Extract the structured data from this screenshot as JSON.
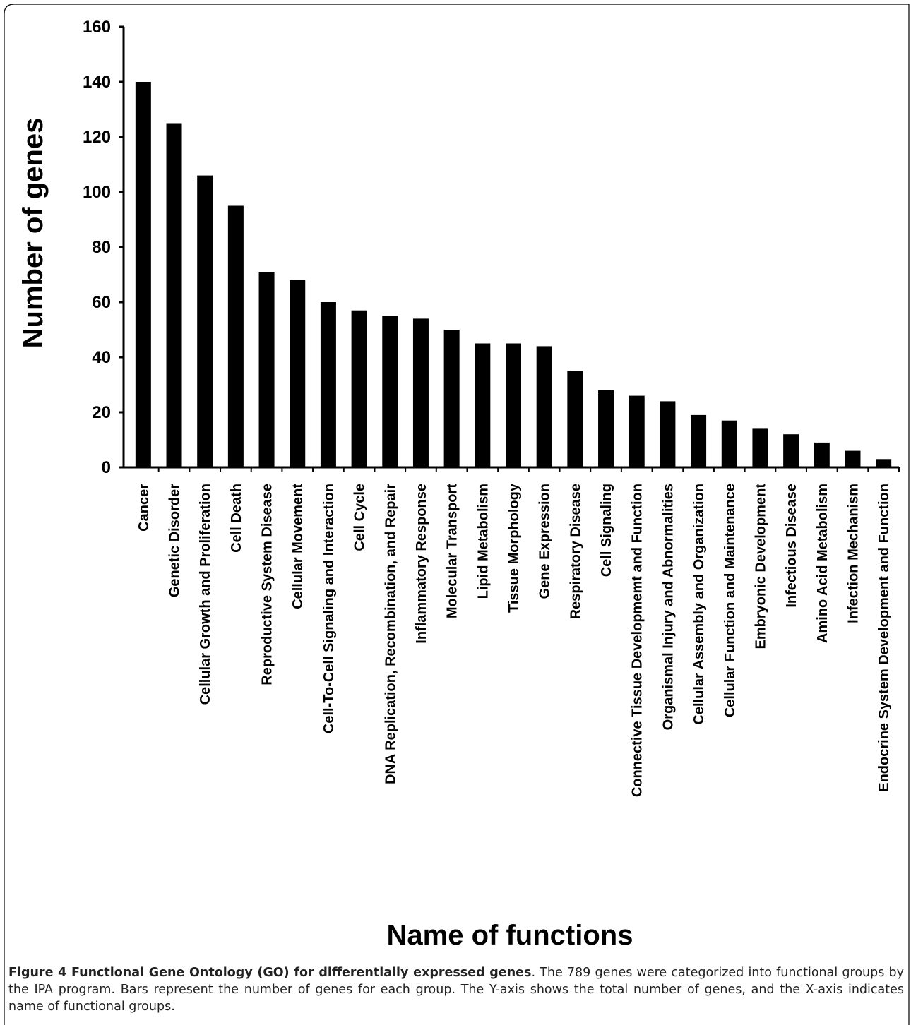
{
  "chart_data": {
    "type": "bar",
    "categories": [
      "Cancer",
      "Genetic Disorder",
      "Cellular Growth and Proliferation",
      "Cell Death",
      "Reproductive System Disease",
      "Cellular Movement",
      "Cell-To-Cell Signaling and Interaction",
      "Cell Cycle",
      "DNA Replication, Recombination, and Repair",
      "Inflammatory Response",
      "Molecular Transport",
      "Lipid Metabolism",
      "Tissue Morphology",
      "Gene Expression",
      "Respiratory Disease",
      "Cell Signaling",
      "Connective Tissue Developmemt and Function",
      "Organismal Injury and Abnormalities",
      "Cellular Assembly and Organization",
      "Cellular Function and Maintenance",
      "Embryonic Development",
      "Infectious Disease",
      "Amino Acid Metabolism",
      "Infection Mechanism",
      "Endocrine System Development and Function"
    ],
    "values": [
      140,
      125,
      106,
      95,
      71,
      68,
      60,
      57,
      55,
      54,
      50,
      45,
      45,
      44,
      35,
      28,
      26,
      24,
      19,
      17,
      14,
      12,
      9,
      6,
      3
    ],
    "color": "#000000",
    "ylim": [
      0,
      160
    ],
    "yticks": [
      0,
      20,
      40,
      60,
      80,
      100,
      120,
      140,
      160
    ],
    "xlabel": "Name of functions",
    "ylabel": "Number of genes"
  },
  "caption": {
    "label": "Figure 4 Functional Gene Ontology (GO) for differentially expressed genes",
    "text": ". The 789 genes were categorized into functional groups by the IPA program. Bars represent the number of genes for each group. The Y-axis shows the total number of genes, and the X-axis indicates name of functional groups."
  }
}
